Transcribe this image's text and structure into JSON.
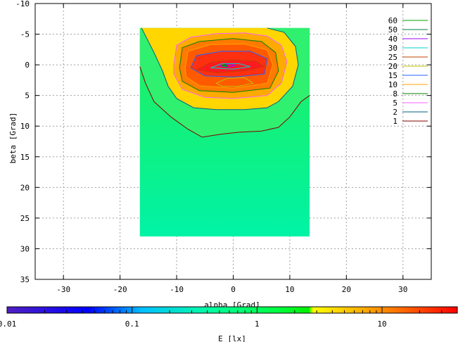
{
  "chart_data": {
    "type": "heatmap",
    "title": "",
    "xlabel": "alpha [Grad]",
    "ylabel": "beta [Grad]",
    "xlim": [
      -35,
      35
    ],
    "ylim": [
      35,
      -10
    ],
    "y_axis_inverted": true,
    "grid": true,
    "x_ticks": [
      -30,
      -20,
      -10,
      0,
      10,
      20,
      30
    ],
    "x_tick_labels": [
      "-30",
      "-20",
      "-10",
      "0",
      "10",
      "20",
      "30"
    ],
    "y_ticks": [
      -10,
      -5,
      0,
      5,
      10,
      15,
      20,
      25,
      30,
      35
    ],
    "y_tick_labels": [
      "-10",
      "-5",
      "0",
      "5",
      "10",
      "15",
      "20",
      "25",
      "30",
      "35"
    ],
    "data_extent": {
      "alpha": [
        -16.5,
        13.5
      ],
      "beta": [
        -6,
        28
      ]
    },
    "contour_legend": {
      "placement": "top-right",
      "entries": [
        {
          "label": "60",
          "color": "#00a000"
        },
        {
          "label": "50",
          "color": "#008040"
        },
        {
          "label": "40",
          "color": "#a000ff"
        },
        {
          "label": "30",
          "color": "#00d0d0"
        },
        {
          "label": "25",
          "color": "#c04000"
        },
        {
          "label": "20",
          "color": "#c0c000"
        },
        {
          "label": "15",
          "color": "#2060ff"
        },
        {
          "label": "10",
          "color": "#ffa000"
        },
        {
          "label": "8",
          "color": "#008000"
        },
        {
          "label": "5",
          "color": "#ff60ff"
        },
        {
          "label": "2",
          "color": "#006080"
        },
        {
          "label": "1",
          "color": "#800000"
        }
      ]
    },
    "colorbar": {
      "label": "E [lx]",
      "scale": "log",
      "range": [
        0.01,
        40
      ],
      "ticks": [
        0.01,
        0.1,
        1,
        10
      ],
      "tick_labels": [
        "0.01",
        "0.1",
        "1",
        "10"
      ],
      "colors": [
        "#5020c0",
        "#0000ff",
        "#00c0ff",
        "#00ffa0",
        "#00ff40",
        "#ffff00",
        "#ff8000",
        "#ff0000"
      ]
    },
    "contours": [
      {
        "level": 1,
        "color": "#800000",
        "points": [
          [
            -16.5,
            0.3
          ],
          [
            -15.5,
            3
          ],
          [
            -14,
            6
          ],
          [
            -11,
            8.5
          ],
          [
            -8,
            10.5
          ],
          [
            -5.5,
            11.8
          ],
          [
            -2,
            11.3
          ],
          [
            1,
            11
          ],
          [
            5,
            10.8
          ],
          [
            8,
            10.2
          ],
          [
            10,
            8.5
          ],
          [
            12,
            6
          ],
          [
            13.5,
            5
          ]
        ]
      },
      {
        "level": 2,
        "color": "#006080",
        "points": [
          [
            -16.2,
            -6
          ],
          [
            -14,
            -2
          ],
          [
            -12.5,
            1
          ],
          [
            -11.5,
            3.5
          ],
          [
            -10,
            5.5
          ],
          [
            -7,
            7
          ],
          [
            -3,
            7.3
          ],
          [
            2,
            7.3
          ],
          [
            6,
            7
          ],
          [
            8,
            6
          ],
          [
            10.5,
            3.5
          ],
          [
            11.5,
            0
          ],
          [
            11,
            -3
          ],
          [
            9,
            -5.3
          ],
          [
            6,
            -6
          ]
        ]
      },
      {
        "level": 5,
        "color": "#ff60ff",
        "points": [
          [
            -10.5,
            0
          ],
          [
            -10,
            -3.2
          ],
          [
            -7.5,
            -4.5
          ],
          [
            -3,
            -5.1
          ],
          [
            2,
            -5.2
          ],
          [
            6,
            -4.7
          ],
          [
            8.5,
            -3.2
          ],
          [
            9.5,
            -0.5
          ],
          [
            8.5,
            3
          ],
          [
            6,
            5
          ],
          [
            0,
            5.5
          ],
          [
            -5,
            5.3
          ],
          [
            -9,
            4
          ],
          [
            -10.5,
            1.5
          ],
          [
            -10.5,
            0
          ]
        ]
      },
      {
        "level": 8,
        "color": "#008000",
        "points": [
          [
            -9.5,
            0.5
          ],
          [
            -9,
            -2.8
          ],
          [
            -6,
            -3.8
          ],
          [
            0,
            -4.3
          ],
          [
            5,
            -3.8
          ],
          [
            7.5,
            -2
          ],
          [
            8,
            1
          ],
          [
            6.5,
            3.8
          ],
          [
            0,
            4.5
          ],
          [
            -6,
            4.2
          ],
          [
            -9,
            2.7
          ],
          [
            -9.5,
            0.5
          ]
        ]
      },
      {
        "level": 10,
        "color": "#ffa000",
        "points": [
          [
            -8.5,
            0.5
          ],
          [
            -8,
            -2.2
          ],
          [
            -4,
            -3.3
          ],
          [
            2,
            -3.4
          ],
          [
            6,
            -2.4
          ],
          [
            7,
            0
          ],
          [
            6,
            3
          ],
          [
            0,
            3.8
          ],
          [
            -6,
            3.4
          ],
          [
            -8.3,
            2
          ],
          [
            -8.5,
            0.5
          ]
        ]
      },
      {
        "level": 15,
        "color": "#2060ff",
        "points": [
          [
            -7.5,
            0.5
          ],
          [
            -6.5,
            -1.5
          ],
          [
            -2,
            -2.2
          ],
          [
            3,
            -2.2
          ],
          [
            6,
            -1
          ],
          [
            5.5,
            1.5
          ],
          [
            0,
            2
          ],
          [
            -5,
            1.8
          ],
          [
            -7.5,
            0.5
          ]
        ]
      },
      {
        "level": 20,
        "color": "#c0c000",
        "points": [
          [
            -3,
            3
          ],
          [
            -1,
            2.2
          ],
          [
            2,
            2.1
          ],
          [
            3.5,
            3
          ],
          [
            1,
            3.5
          ],
          [
            -2,
            3.5
          ],
          [
            -3,
            3
          ]
        ]
      },
      {
        "level": 25,
        "color": "#c04000",
        "points": [
          [
            -6.5,
            0.8
          ],
          [
            -4,
            -0.4
          ],
          [
            0,
            -0.8
          ],
          [
            4,
            -0.6
          ],
          [
            5.5,
            0.3
          ],
          [
            2,
            1
          ],
          [
            -3,
            1.3
          ],
          [
            -6.5,
            0.8
          ]
        ]
      },
      {
        "level": 30,
        "color": "#00d0d0",
        "points": [
          [
            -4,
            0.5
          ],
          [
            -2,
            -0.2
          ],
          [
            1,
            -0.2
          ],
          [
            3,
            0.3
          ],
          [
            0,
            0.7
          ],
          [
            -4,
            0.5
          ]
        ]
      },
      {
        "level": 40,
        "color": "#a000ff",
        "points": [
          [
            -2.5,
            0.2
          ],
          [
            -1,
            -0.1
          ],
          [
            0.5,
            0.1
          ],
          [
            -1,
            0.4
          ],
          [
            -2.5,
            0.2
          ]
        ]
      },
      {
        "level": 50,
        "color": "#008040",
        "points": [
          [
            -2,
            0.1
          ],
          [
            -1.5,
            -0.1
          ],
          [
            -1,
            0.2
          ],
          [
            -2,
            0.1
          ]
        ]
      },
      {
        "level": 60,
        "color": "#00a000",
        "points": [
          [
            -2,
            0.2
          ],
          [
            -1.6,
            0.0
          ],
          [
            -1.2,
            0.3
          ],
          [
            -2,
            0.2
          ]
        ]
      }
    ],
    "bands": [
      {
        "color": "#30f070",
        "points": [
          [
            -16.5,
            0.3
          ],
          [
            -15.5,
            3
          ],
          [
            -14,
            6
          ],
          [
            -11,
            8.5
          ],
          [
            -8,
            10.5
          ],
          [
            -5.5,
            11.8
          ],
          [
            -2,
            11.3
          ],
          [
            1,
            11
          ],
          [
            5,
            10.8
          ],
          [
            8,
            10.2
          ],
          [
            10,
            8.5
          ],
          [
            12,
            6
          ],
          [
            13.5,
            5
          ],
          [
            13.5,
            -6
          ],
          [
            -16.5,
            -6
          ]
        ]
      },
      {
        "color": "#ffd600",
        "points": [
          [
            -16.2,
            -6
          ],
          [
            -14,
            -2
          ],
          [
            -12.5,
            1
          ],
          [
            -11.5,
            3.5
          ],
          [
            -10,
            5.5
          ],
          [
            -7,
            7
          ],
          [
            -3,
            7.3
          ],
          [
            2,
            7.3
          ],
          [
            6,
            7
          ],
          [
            8,
            6
          ],
          [
            10.5,
            3.5
          ],
          [
            11.5,
            0
          ],
          [
            11,
            -3
          ],
          [
            9,
            -5.3
          ],
          [
            6,
            -6
          ]
        ]
      },
      {
        "color": "#ffaa00",
        "points": [
          [
            -10.5,
            0
          ],
          [
            -10,
            -3.2
          ],
          [
            -7.5,
            -4.5
          ],
          [
            -3,
            -5.1
          ],
          [
            2,
            -5.2
          ],
          [
            6,
            -4.7
          ],
          [
            8.5,
            -3.2
          ],
          [
            9.5,
            -0.5
          ],
          [
            8.5,
            3
          ],
          [
            6,
            5
          ],
          [
            0,
            5.5
          ],
          [
            -5,
            5.3
          ],
          [
            -9,
            4
          ],
          [
            -10.5,
            1.5
          ],
          [
            -10.5,
            0
          ]
        ]
      },
      {
        "color": "#ff7a00",
        "points": [
          [
            -9.5,
            0.5
          ],
          [
            -9,
            -2.8
          ],
          [
            -6,
            -3.8
          ],
          [
            0,
            -4.3
          ],
          [
            5,
            -3.8
          ],
          [
            7.5,
            -2
          ],
          [
            8,
            1
          ],
          [
            6.5,
            3.8
          ],
          [
            0,
            4.5
          ],
          [
            -6,
            4.2
          ],
          [
            -9,
            2.7
          ],
          [
            -9.5,
            0.5
          ]
        ]
      },
      {
        "color": "#ff5a00",
        "points": [
          [
            -8.5,
            0.5
          ],
          [
            -8,
            -2.2
          ],
          [
            -4,
            -3.3
          ],
          [
            2,
            -3.4
          ],
          [
            6,
            -2.4
          ],
          [
            7,
            0
          ],
          [
            6,
            3
          ],
          [
            0,
            3.8
          ],
          [
            -6,
            3.4
          ],
          [
            -8.3,
            2
          ],
          [
            -8.5,
            0.5
          ]
        ]
      },
      {
        "color": "#ff3010",
        "points": [
          [
            -7.5,
            0.5
          ],
          [
            -6.5,
            -1.5
          ],
          [
            -2,
            -2.2
          ],
          [
            3,
            -2.2
          ],
          [
            6,
            -1
          ],
          [
            5.5,
            1.5
          ],
          [
            0,
            2
          ],
          [
            -5,
            1.8
          ],
          [
            -7.5,
            0.5
          ]
        ]
      },
      {
        "color": "#ff1a20",
        "points": [
          [
            -6.5,
            0.8
          ],
          [
            -4,
            -0.4
          ],
          [
            0,
            -0.8
          ],
          [
            4,
            -0.6
          ],
          [
            5.5,
            0.3
          ],
          [
            2,
            1
          ],
          [
            -3,
            1.3
          ],
          [
            -6.5,
            0.8
          ]
        ]
      }
    ]
  }
}
